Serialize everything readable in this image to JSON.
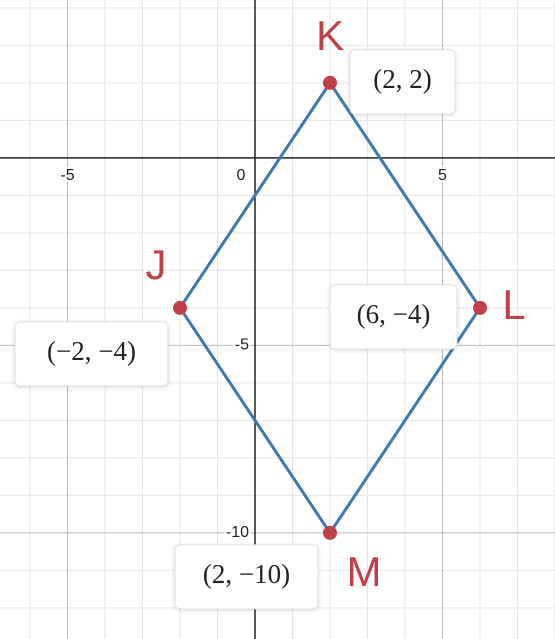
{
  "chart_data": {
    "type": "scatter",
    "x": [
      2,
      6,
      2,
      -2
    ],
    "values": [
      2,
      -4,
      -10,
      -4
    ],
    "labels": [
      "K",
      "L",
      "M",
      "J"
    ],
    "value_labels": [
      "(2, 2)",
      "(6, −4)",
      "(2, −10)",
      "(−2, −4)"
    ],
    "color": "#3d78b0",
    "point_color": "#c0404a",
    "xlim": [
      -6.8,
      8
    ],
    "ylim": [
      -12.83,
      4.21
    ],
    "xticks": [
      -5,
      0,
      5
    ],
    "yticks": [
      -10,
      -5
    ],
    "grid": true
  }
}
